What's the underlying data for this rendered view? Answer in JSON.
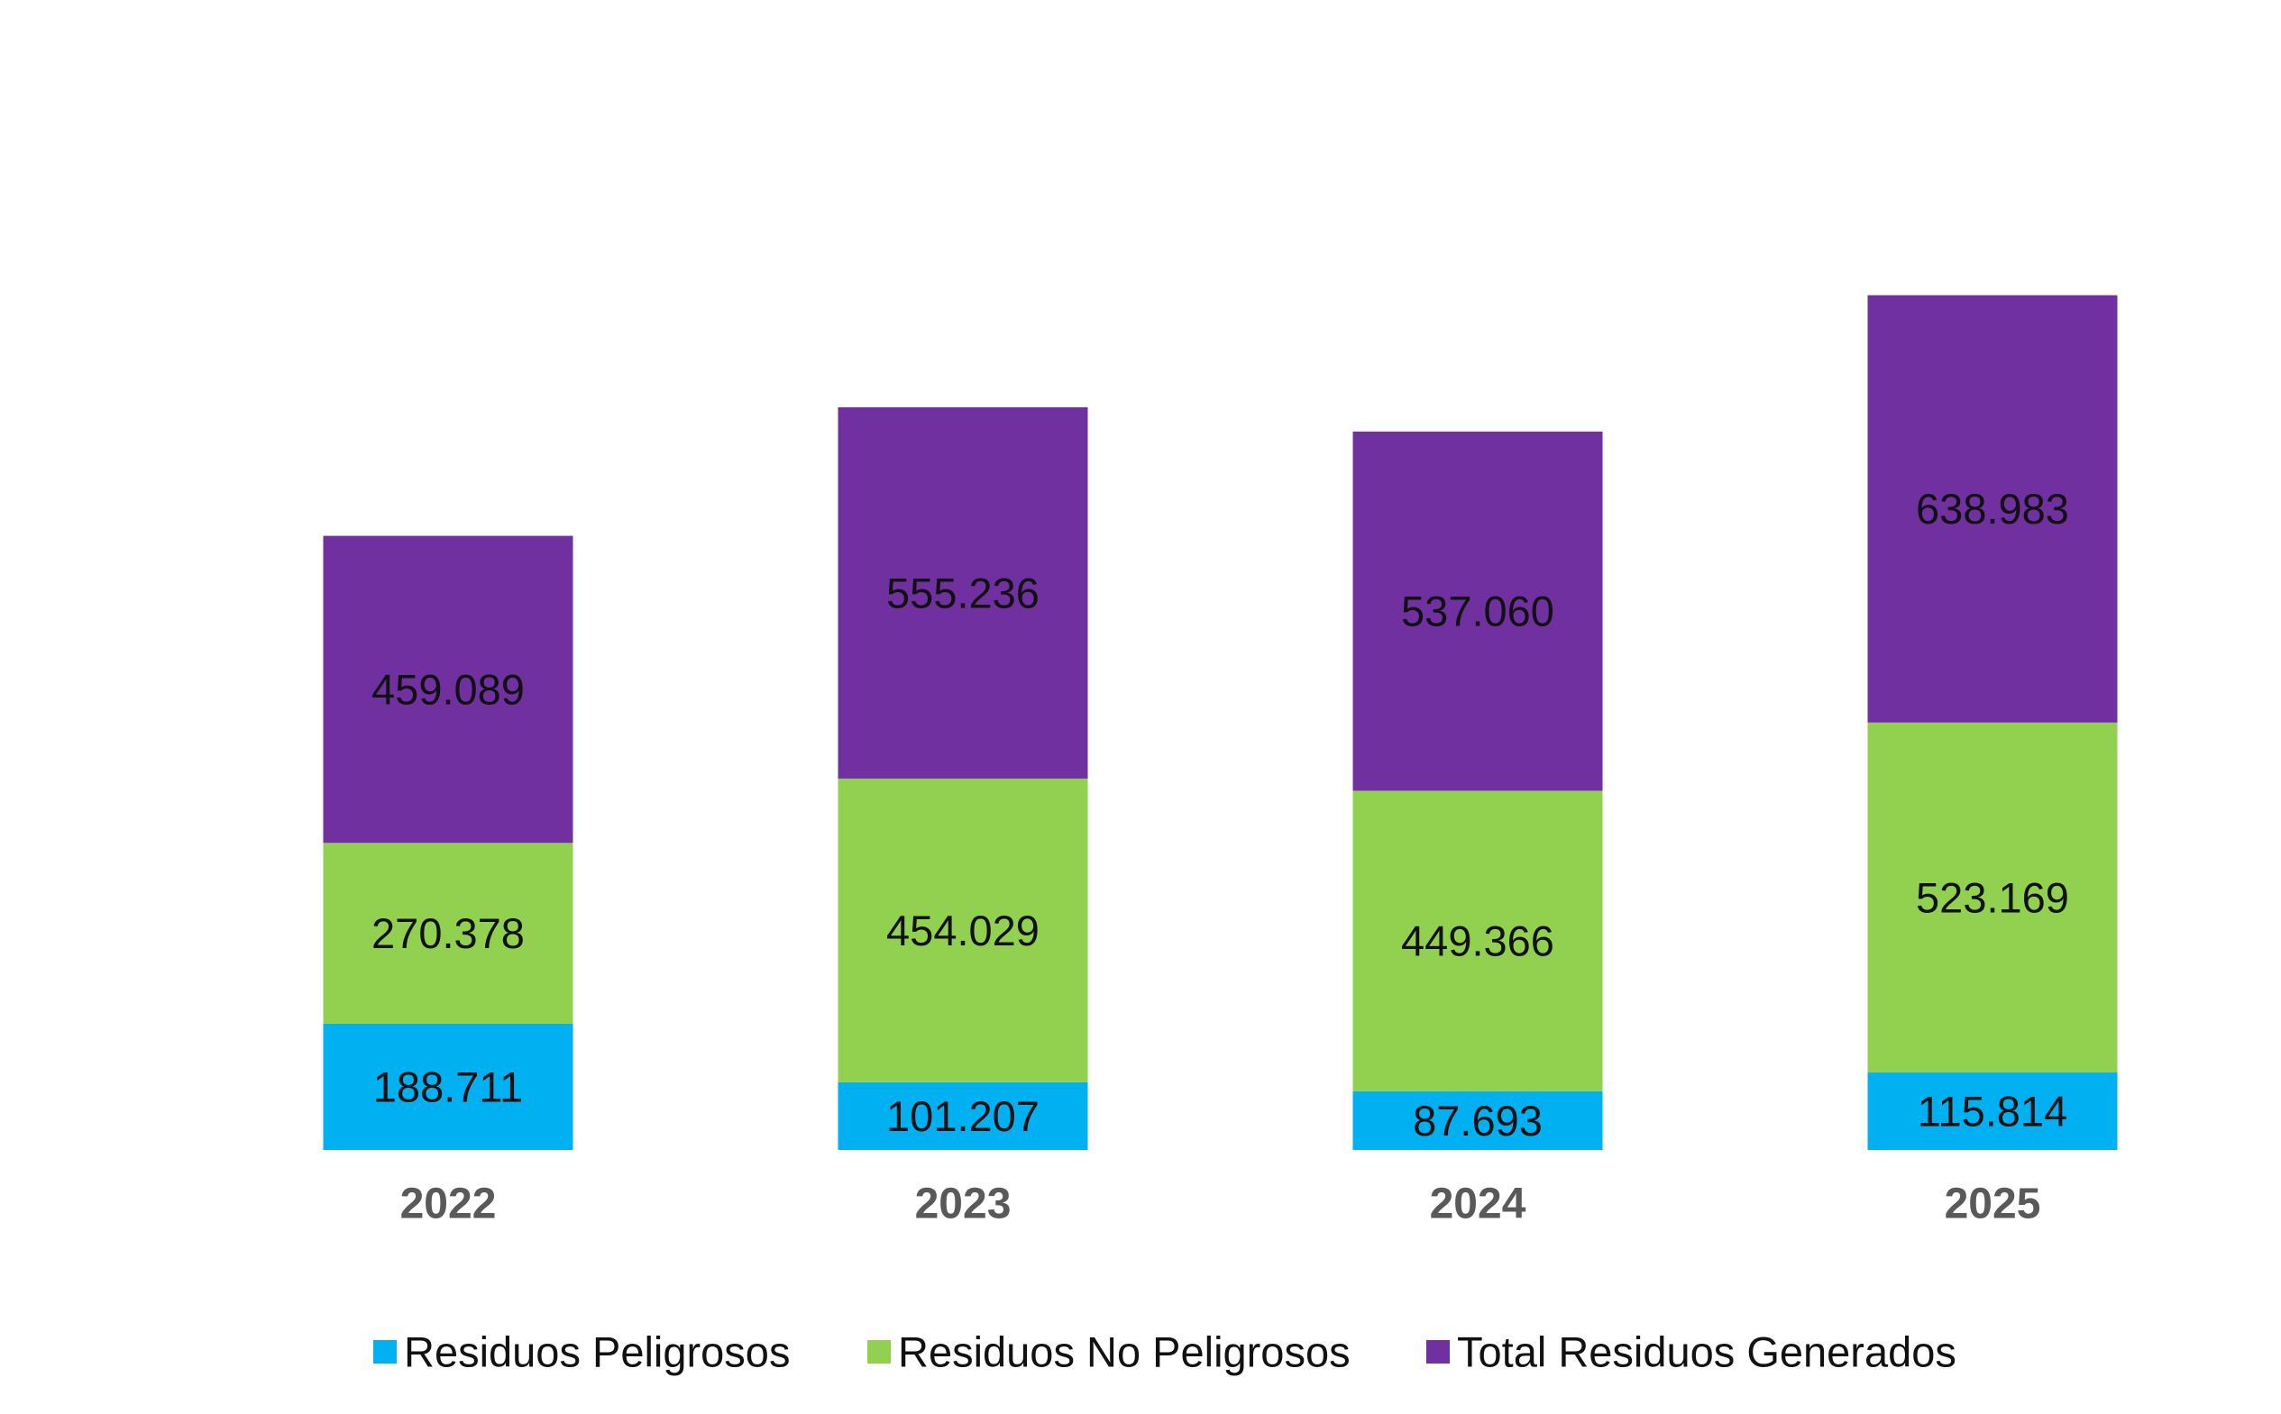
{
  "chart_data": {
    "type": "bar",
    "stacked": true,
    "categories": [
      "2022",
      "2023",
      "2024",
      "2025"
    ],
    "series": [
      {
        "name": "Residuos Peligrosos",
        "values": [
          188711,
          101207,
          87693,
          115814
        ],
        "labels": [
          "188.711",
          "101.207",
          "87.693",
          "115.814"
        ],
        "color": "#00B0F0"
      },
      {
        "name": "Residuos No Peligrosos",
        "values": [
          270378,
          454029,
          449366,
          523169
        ],
        "labels": [
          "270.378",
          "454.029",
          "449.366",
          "523.169"
        ],
        "color": "#92D050"
      },
      {
        "name": "Total Residuos Generados",
        "values": [
          459089,
          555236,
          537060,
          638983
        ],
        "labels": [
          "459.089",
          "555.236",
          "537.060",
          "638.983"
        ],
        "color": "#7030A0"
      }
    ],
    "title": "",
    "xlabel": "",
    "ylabel": "",
    "ylim": [
      0,
      1400000
    ],
    "grid": false,
    "legend": "bottom"
  }
}
